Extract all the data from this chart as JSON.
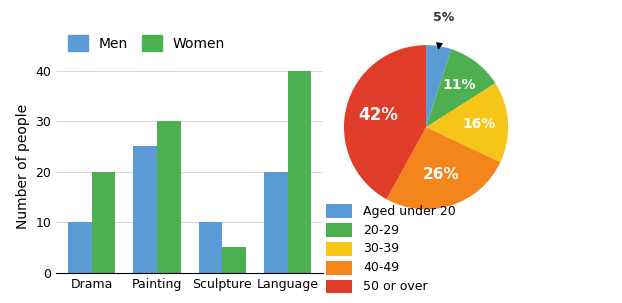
{
  "bar_categories": [
    "Drama",
    "Painting",
    "Sculpture",
    "Language"
  ],
  "men_values": [
    10,
    25,
    10,
    20
  ],
  "women_values": [
    20,
    30,
    5,
    40
  ],
  "bar_ylabel": "Number of people",
  "bar_ylim": [
    0,
    42
  ],
  "bar_yticks": [
    0,
    10,
    20,
    30,
    40
  ],
  "men_color": "#5B9BD5",
  "women_color": "#4CAF50",
  "pie_values": [
    5,
    11,
    16,
    26,
    42
  ],
  "pie_labels": [
    "5%",
    "11%",
    "16%",
    "26%",
    "42%"
  ],
  "pie_colors": [
    "#5B9BD5",
    "#4CAF50",
    "#F5C518",
    "#F4841C",
    "#E03C2A"
  ],
  "pie_legend_labels": [
    "Aged under 20",
    "20-29",
    "30-39",
    "40-49",
    "50 or over"
  ],
  "pie_startangle": 90,
  "background_color": "#ffffff",
  "bar_label_fontsize": 10,
  "tick_fontsize": 9
}
